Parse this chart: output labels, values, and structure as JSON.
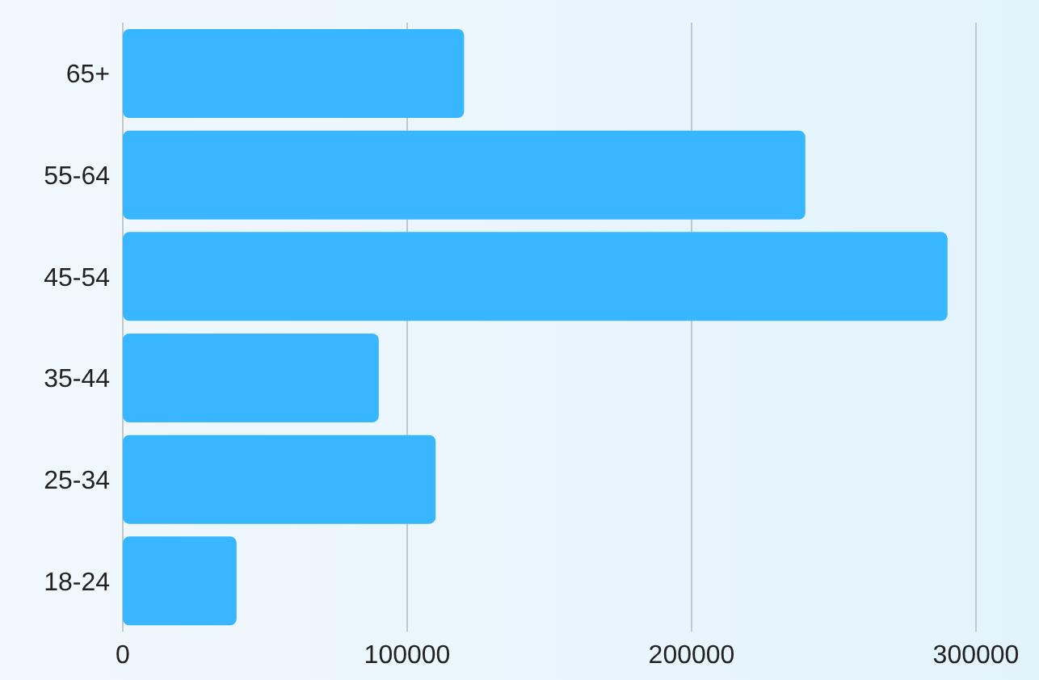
{
  "chart_data": {
    "type": "bar",
    "orientation": "horizontal",
    "categories": [
      "65+",
      "55-64",
      "45-54",
      "35-44",
      "25-34",
      "18-24"
    ],
    "values": [
      120000,
      240000,
      290000,
      90000,
      110000,
      40000
    ],
    "color": "#38b6ff",
    "xlim": [
      0,
      300000
    ],
    "xticks": [
      0,
      100000,
      200000,
      300000
    ],
    "grid": "x",
    "legend": false
  }
}
